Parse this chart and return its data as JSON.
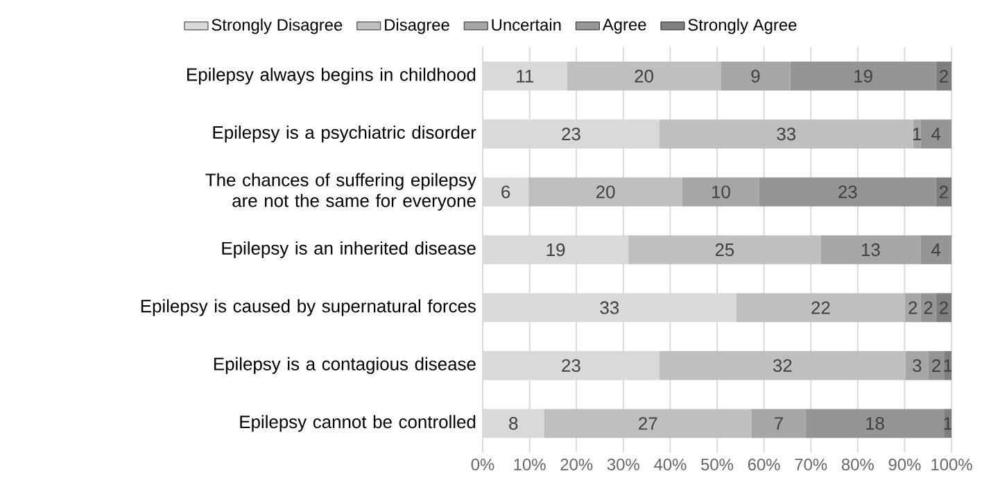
{
  "chart_data": {
    "type": "bar",
    "orientation": "horizontal",
    "stacked": true,
    "grid": "x",
    "legend": "top",
    "categories": [
      "Epilepsy always begins in childhood",
      "Epilepsy is a psychiatric disorder",
      "The chances of suffering epilepsy are not the same for everyone",
      "Epilepsy is an inherited disease",
      "Epilepsy is caused by supernatural forces",
      "Epilepsy is a contagious disease",
      "Epilepsy cannot be controlled"
    ],
    "series": [
      {
        "name": "Strongly Disagree",
        "color": "#d9d9d9",
        "values": [
          18.0,
          37.7,
          9.8,
          31.1,
          54.1,
          37.7,
          13.1
        ]
      },
      {
        "name": "Disagree",
        "color": "#bfbfbf",
        "values": [
          32.8,
          54.1,
          32.8,
          41.0,
          36.0,
          52.5,
          44.3
        ]
      },
      {
        "name": "Uncertain",
        "color": "#a6a6a6",
        "values": [
          14.8,
          1.6,
          16.4,
          21.3,
          3.3,
          4.9,
          11.5
        ]
      },
      {
        "name": "Agree",
        "color": "#959595",
        "values": [
          31.1,
          6.6,
          37.7,
          6.6,
          3.3,
          3.3,
          29.5
        ]
      },
      {
        "name": "Strongly Agree",
        "color": "#7f7f7f",
        "values": [
          3.3,
          null,
          3.3,
          null,
          3.3,
          1.6,
          1.6
        ]
      }
    ],
    "annotations": [
      "11",
      "20",
      "9",
      "19",
      "2",
      "23",
      "33",
      "1",
      "4",
      "6",
      "20",
      "10",
      "23",
      "2",
      "19",
      "25",
      "13",
      "4",
      "33",
      "22",
      "2",
      "2",
      "2",
      "23",
      "32",
      "3",
      "2",
      "1",
      "8",
      "27",
      "7",
      "18",
      "1"
    ],
    "xlim": [
      0,
      100
    ],
    "xticks": [
      {
        "value": 0,
        "label": "0%"
      },
      {
        "value": 10,
        "label": "10%"
      },
      {
        "value": 20,
        "label": "20%"
      },
      {
        "value": 30,
        "label": "30%"
      },
      {
        "value": 40,
        "label": "40%"
      },
      {
        "value": 50,
        "label": "50%"
      },
      {
        "value": 60,
        "label": "60%"
      },
      {
        "value": 70,
        "label": "70%"
      },
      {
        "value": 80,
        "label": "80%"
      },
      {
        "value": 90,
        "label": "90%"
      },
      {
        "value": 100,
        "label": "100%"
      }
    ]
  }
}
